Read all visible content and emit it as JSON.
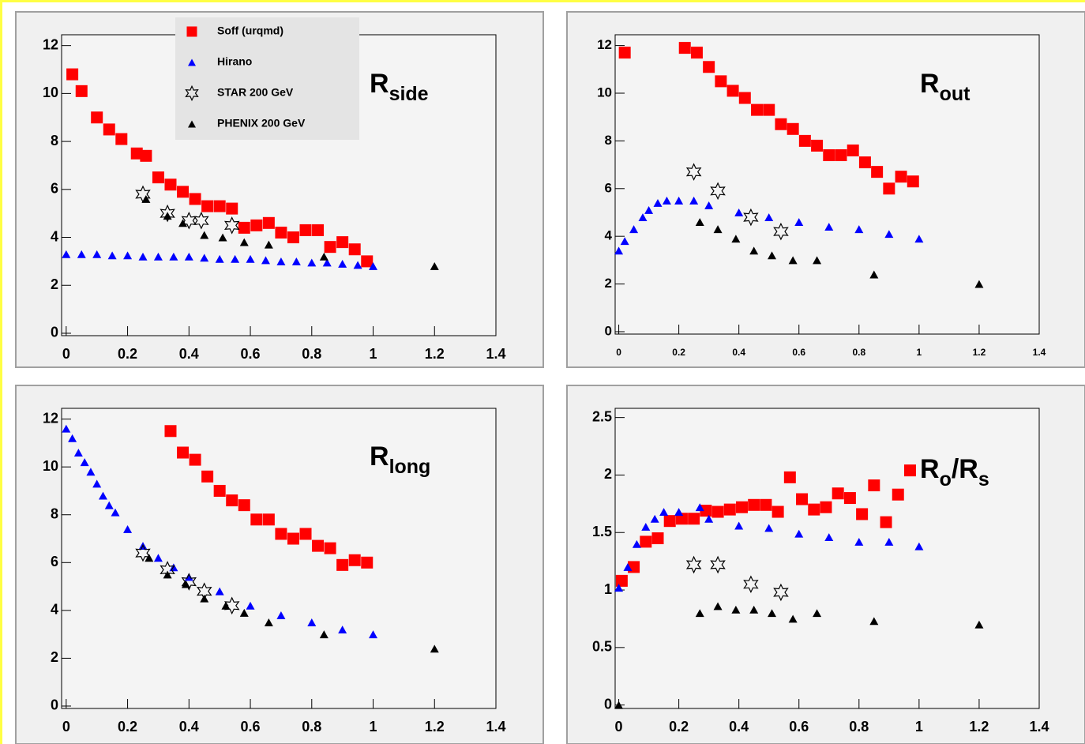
{
  "chart_data": [
    {
      "type": "scatter",
      "annotation": [
        {
          "text": "R"
        },
        {
          "text": "side",
          "sub": true
        }
      ],
      "xlim": [
        -0.015,
        1.4
      ],
      "ylim": [
        -0.1,
        12.45
      ],
      "xticks": [
        0,
        0.2,
        0.4,
        0.6,
        0.8,
        1,
        1.2,
        1.4
      ],
      "yticks": [
        0,
        2,
        4,
        6,
        8,
        10,
        12
      ],
      "legend": "upper left",
      "series": [
        {
          "name": "Soff (urqmd)",
          "color": "#ff0000",
          "marker": "square",
          "x": [
            0.02,
            0.05,
            0.1,
            0.14,
            0.18,
            0.23,
            0.26,
            0.3,
            0.34,
            0.38,
            0.42,
            0.46,
            0.5,
            0.54,
            0.58,
            0.62,
            0.66,
            0.7,
            0.74,
            0.78,
            0.82,
            0.86,
            0.9,
            0.94,
            0.98
          ],
          "values": [
            10.8,
            10.1,
            9.0,
            8.5,
            8.1,
            7.5,
            7.4,
            6.5,
            6.2,
            5.9,
            5.6,
            5.3,
            5.3,
            5.2,
            4.4,
            4.5,
            4.6,
            4.2,
            4.0,
            4.3,
            4.3,
            3.6,
            3.8,
            3.5,
            3.0
          ]
        },
        {
          "name": "Hirano",
          "color": "#0000ff",
          "marker": "triangle",
          "x": [
            0,
            0.05,
            0.1,
            0.15,
            0.2,
            0.25,
            0.3,
            0.35,
            0.4,
            0.45,
            0.5,
            0.55,
            0.6,
            0.65,
            0.7,
            0.75,
            0.8,
            0.85,
            0.9,
            0.95,
            1.0
          ],
          "values": [
            3.3,
            3.3,
            3.3,
            3.25,
            3.25,
            3.2,
            3.2,
            3.2,
            3.2,
            3.15,
            3.1,
            3.1,
            3.1,
            3.05,
            3.0,
            3.0,
            2.95,
            2.95,
            2.9,
            2.85,
            2.8
          ]
        },
        {
          "name": "STAR 200 GeV",
          "color": "#000000",
          "marker": "star",
          "x": [
            0.25,
            0.33,
            0.4,
            0.44,
            0.54
          ],
          "values": [
            5.8,
            5.0,
            4.7,
            4.7,
            4.5
          ]
        },
        {
          "name": "PHENIX 200 GeV",
          "color": "#000000",
          "marker": "triangle",
          "x": [
            0.26,
            0.33,
            0.38,
            0.45,
            0.51,
            0.58,
            0.66,
            0.84,
            1.2
          ],
          "values": [
            5.6,
            4.9,
            4.6,
            4.1,
            4.0,
            3.8,
            3.7,
            3.2,
            2.8
          ]
        }
      ]
    },
    {
      "type": "scatter",
      "annotation": [
        {
          "text": "R"
        },
        {
          "text": "out",
          "sub": true
        }
      ],
      "xlim": [
        -0.012,
        1.4
      ],
      "ylim": [
        -0.1,
        12.45
      ],
      "xticks": [
        0,
        0.2,
        0.4,
        0.6,
        0.8,
        1,
        1.2,
        1.4
      ],
      "yticks": [
        0,
        2,
        4,
        6,
        8,
        10,
        12
      ],
      "series": [
        {
          "color": "#ff0000",
          "marker": "square",
          "x": [
            0.02,
            0.22,
            0.26,
            0.3,
            0.34,
            0.38,
            0.42,
            0.46,
            0.5,
            0.54,
            0.58,
            0.62,
            0.66,
            0.7,
            0.74,
            0.78,
            0.82,
            0.86,
            0.9,
            0.94,
            0.98
          ],
          "values": [
            11.7,
            11.9,
            11.7,
            11.1,
            10.5,
            10.1,
            9.8,
            9.3,
            9.3,
            8.7,
            8.5,
            8.0,
            7.8,
            7.4,
            7.4,
            7.6,
            7.1,
            6.7,
            6.0,
            6.5,
            6.3
          ]
        },
        {
          "color": "#0000ff",
          "marker": "triangle",
          "x": [
            0,
            0.02,
            0.05,
            0.08,
            0.1,
            0.13,
            0.16,
            0.2,
            0.25,
            0.3,
            0.4,
            0.5,
            0.6,
            0.7,
            0.8,
            0.9,
            1.0
          ],
          "values": [
            3.4,
            3.8,
            4.3,
            4.8,
            5.1,
            5.4,
            5.5,
            5.5,
            5.5,
            5.3,
            5.0,
            4.8,
            4.6,
            4.4,
            4.3,
            4.1,
            3.9
          ]
        },
        {
          "color": "#000000",
          "marker": "star",
          "x": [
            0.25,
            0.33,
            0.44,
            0.54
          ],
          "values": [
            6.7,
            5.9,
            4.8,
            4.2
          ]
        },
        {
          "color": "#000000",
          "marker": "triangle",
          "x": [
            0.27,
            0.33,
            0.39,
            0.45,
            0.51,
            0.58,
            0.66,
            0.85,
            1.2
          ],
          "values": [
            4.6,
            4.3,
            3.9,
            3.4,
            3.2,
            3.0,
            3.0,
            2.4,
            2.0
          ]
        }
      ]
    },
    {
      "type": "scatter",
      "annotation": [
        {
          "text": "R"
        },
        {
          "text": "long",
          "sub": true
        }
      ],
      "xlim": [
        -0.015,
        1.4
      ],
      "ylim": [
        -0.1,
        12.45
      ],
      "xticks": [
        0,
        0.2,
        0.4,
        0.6,
        0.8,
        1,
        1.2,
        1.4
      ],
      "yticks": [
        0,
        2,
        4,
        6,
        8,
        10,
        12
      ],
      "series": [
        {
          "color": "#ff0000",
          "marker": "square",
          "x": [
            0.34,
            0.38,
            0.42,
            0.46,
            0.5,
            0.54,
            0.58,
            0.62,
            0.66,
            0.7,
            0.74,
            0.78,
            0.82,
            0.86,
            0.9,
            0.94,
            0.98
          ],
          "values": [
            11.5,
            10.6,
            10.3,
            9.6,
            9.0,
            8.6,
            8.4,
            7.8,
            7.8,
            7.2,
            7.0,
            7.2,
            6.7,
            6.6,
            5.9,
            6.1,
            6.0
          ]
        },
        {
          "color": "#0000ff",
          "marker": "triangle",
          "x": [
            0,
            0.02,
            0.04,
            0.06,
            0.08,
            0.1,
            0.12,
            0.14,
            0.16,
            0.2,
            0.25,
            0.3,
            0.35,
            0.4,
            0.5,
            0.6,
            0.7,
            0.8,
            0.9,
            1.0
          ],
          "values": [
            11.6,
            11.2,
            10.6,
            10.2,
            9.8,
            9.3,
            8.8,
            8.4,
            8.1,
            7.4,
            6.7,
            6.2,
            5.8,
            5.4,
            4.8,
            4.2,
            3.8,
            3.5,
            3.2,
            3.0
          ]
        },
        {
          "color": "#000000",
          "marker": "star",
          "x": [
            0.25,
            0.33,
            0.4,
            0.45,
            0.54
          ],
          "values": [
            6.4,
            5.7,
            5.2,
            4.8,
            4.2
          ]
        },
        {
          "color": "#000000",
          "marker": "triangle",
          "x": [
            0.27,
            0.33,
            0.39,
            0.45,
            0.52,
            0.58,
            0.66,
            0.84,
            1.2
          ],
          "values": [
            6.2,
            5.5,
            5.1,
            4.5,
            4.2,
            3.9,
            3.5,
            3.0,
            2.4
          ]
        }
      ]
    },
    {
      "type": "scatter",
      "annotation": [
        {
          "text": "R"
        },
        {
          "text": "o",
          "sub": true
        },
        {
          "text": "/R"
        },
        {
          "text": "s",
          "sub": true
        }
      ],
      "xlim": [
        -0.012,
        1.4
      ],
      "ylim": [
        -0.03,
        2.58
      ],
      "xticks": [
        0,
        0.2,
        0.4,
        0.6,
        0.8,
        1,
        1.2,
        1.4
      ],
      "yticks": [
        0,
        0.5,
        1,
        1.5,
        2,
        2.5
      ],
      "series": [
        {
          "color": "#ff0000",
          "marker": "square",
          "x": [
            0.01,
            0.05,
            0.09,
            0.13,
            0.17,
            0.21,
            0.25,
            0.29,
            0.33,
            0.37,
            0.41,
            0.45,
            0.49,
            0.53,
            0.57,
            0.61,
            0.65,
            0.69,
            0.73,
            0.77,
            0.81,
            0.85,
            0.89,
            0.93,
            0.97
          ],
          "values": [
            1.08,
            1.2,
            1.42,
            1.45,
            1.6,
            1.62,
            1.62,
            1.69,
            1.68,
            1.7,
            1.72,
            1.74,
            1.74,
            1.68,
            1.98,
            1.79,
            1.7,
            1.72,
            1.84,
            1.8,
            1.66,
            1.91,
            1.59,
            1.83,
            2.04
          ]
        },
        {
          "color": "#0000ff",
          "marker": "triangle",
          "x": [
            0,
            0.03,
            0.06,
            0.09,
            0.12,
            0.15,
            0.2,
            0.27,
            0.3,
            0.4,
            0.5,
            0.6,
            0.7,
            0.8,
            0.9,
            1.0
          ],
          "values": [
            1.02,
            1.2,
            1.4,
            1.55,
            1.62,
            1.68,
            1.68,
            1.72,
            1.62,
            1.56,
            1.54,
            1.49,
            1.46,
            1.42,
            1.42,
            1.38
          ]
        },
        {
          "color": "#000000",
          "marker": "star",
          "x": [
            0.25,
            0.33,
            0.44,
            0.54
          ],
          "values": [
            1.22,
            1.22,
            1.05,
            0.98
          ]
        },
        {
          "color": "#000000",
          "marker": "triangle",
          "x": [
            0,
            0.27,
            0.33,
            0.39,
            0.45,
            0.51,
            0.58,
            0.66,
            0.85,
            1.2
          ],
          "values": [
            0,
            0.8,
            0.86,
            0.83,
            0.83,
            0.8,
            0.75,
            0.8,
            0.73,
            0.7
          ]
        }
      ]
    }
  ]
}
